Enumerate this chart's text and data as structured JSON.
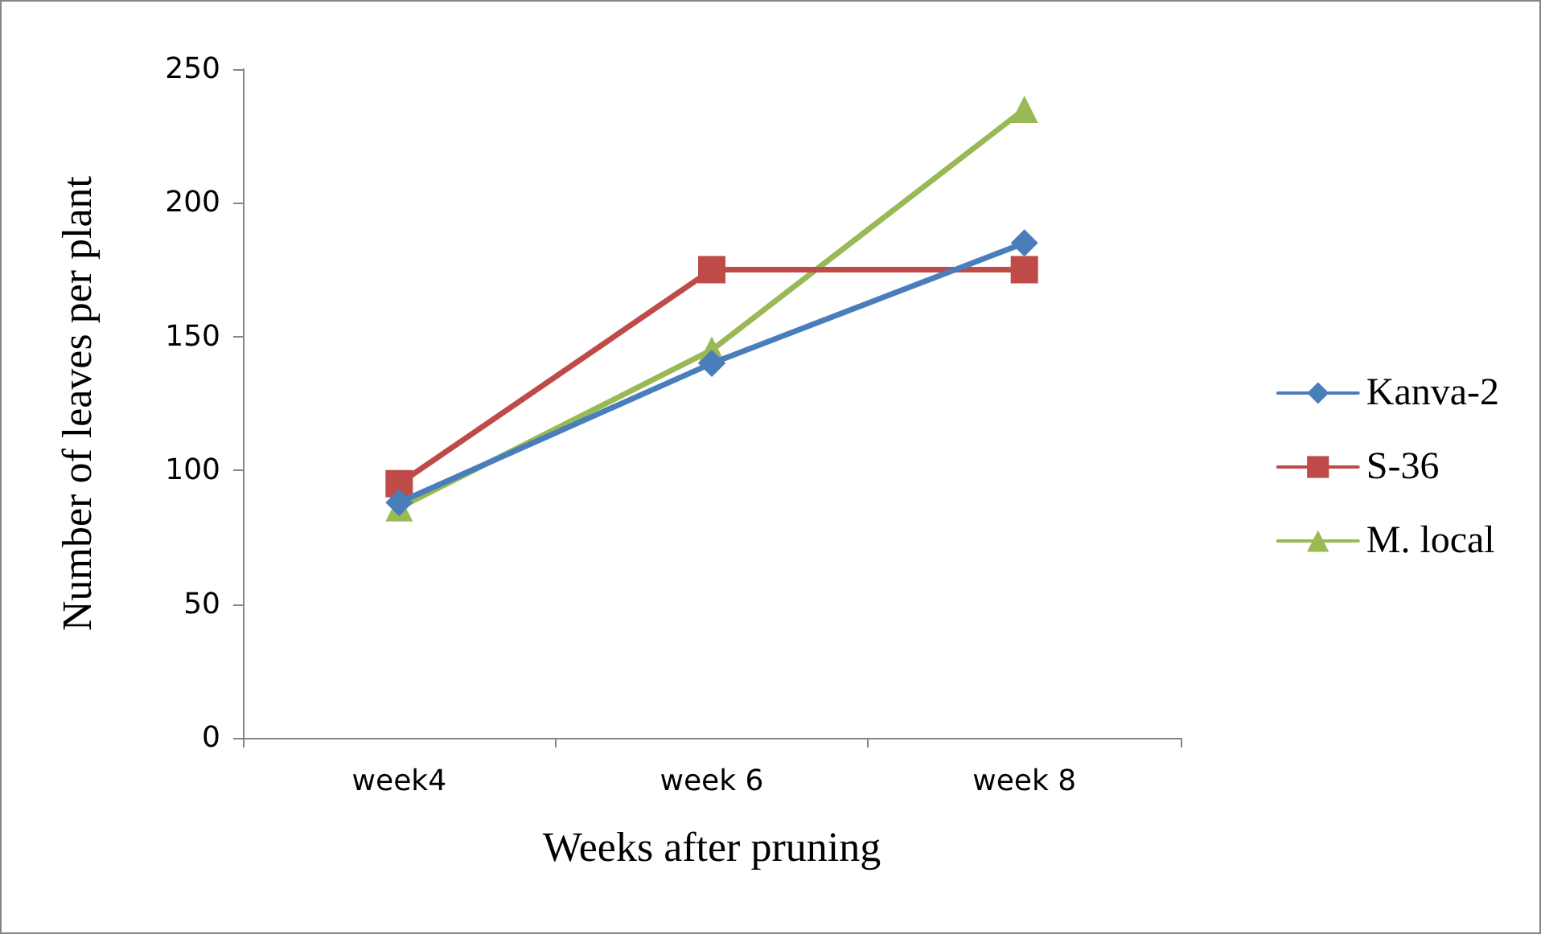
{
  "chart_data": {
    "type": "line",
    "xlabel": "Weeks after pruning",
    "ylabel": "Number of leaves per plant",
    "categories": [
      "week4",
      "week 6",
      "week 8"
    ],
    "series": [
      {
        "name": "Kanva-2",
        "color": "#4a7ebb",
        "marker": "diamond",
        "values": [
          88,
          140,
          185
        ]
      },
      {
        "name": "S-36",
        "color": "#be4b48",
        "marker": "square",
        "values": [
          95,
          175,
          175
        ]
      },
      {
        "name": "M. local",
        "color": "#98b954",
        "marker": "triangle",
        "values": [
          86,
          145,
          235
        ]
      }
    ],
    "ylim": [
      0,
      250
    ],
    "yticks": [
      0,
      50,
      100,
      150,
      200,
      250
    ],
    "grid": false,
    "legend": "right"
  }
}
